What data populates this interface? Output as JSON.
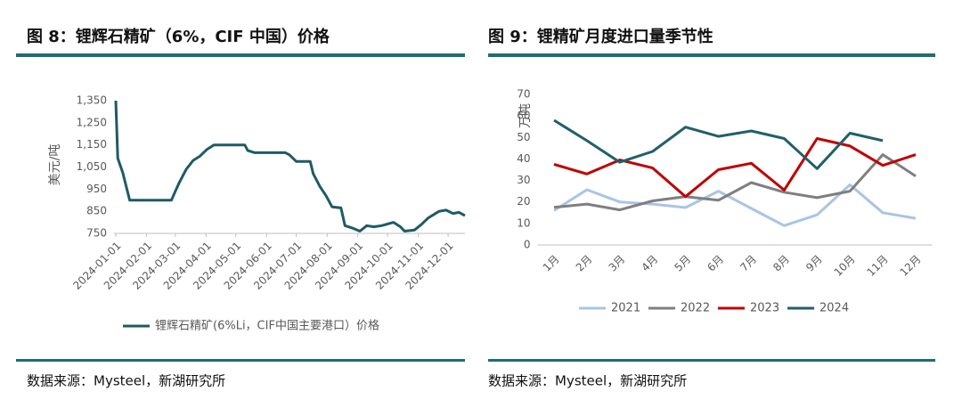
{
  "chart_data": [
    {
      "type": "line",
      "title": "图 8：锂辉石精矿（6%，CIF 中国）价格",
      "y_label": "美元/吨",
      "source": "数据来源：Mysteel，新湖研究所",
      "x": [
        "2024-01-01",
        "2024-01-03",
        "2024-01-08",
        "2024-01-15",
        "2024-02-26",
        "2024-03-01",
        "2024-03-05",
        "2024-03-12",
        "2024-03-19",
        "2024-03-26",
        "2024-04-02",
        "2024-04-09",
        "2024-05-10",
        "2024-05-13",
        "2024-05-20",
        "2024-06-20",
        "2024-06-24",
        "2024-07-01",
        "2024-07-15",
        "2024-07-18",
        "2024-07-25",
        "2024-07-31",
        "2024-08-06",
        "2024-08-15",
        "2024-08-19",
        "2024-08-26",
        "2024-09-03",
        "2024-09-10",
        "2024-09-17",
        "2024-09-25",
        "2024-10-07",
        "2024-10-14",
        "2024-10-18",
        "2024-10-28",
        "2024-11-04",
        "2024-11-11",
        "2024-11-22",
        "2024-11-29",
        "2024-12-06",
        "2024-12-12",
        "2024-12-18"
      ],
      "series": [
        {
          "name": "锂辉石精矿(6%Li，CIF中国主要港口）价格",
          "color": "#1f5a66",
          "values": [
            1350,
            1090,
            1025,
            900,
            900,
            940,
            980,
            1040,
            1080,
            1100,
            1130,
            1150,
            1150,
            1125,
            1115,
            1115,
            1105,
            1075,
            1075,
            1020,
            960,
            920,
            870,
            865,
            785,
            775,
            760,
            785,
            780,
            785,
            800,
            780,
            760,
            765,
            790,
            820,
            850,
            855,
            840,
            845,
            830
          ]
        }
      ],
      "xticks": [
        "2024-01-01",
        "2024-02-01",
        "2024-03-01",
        "2024-04-01",
        "2024-05-01",
        "2024-06-01",
        "2024-07-01",
        "2024-08-01",
        "2024-09-01",
        "2024-10-01",
        "2024-11-01",
        "2024-12-01"
      ],
      "ylim": [
        750,
        1350
      ],
      "yticks": [
        750,
        850,
        950,
        {
          "value": 1050,
          "label": "1,050"
        },
        {
          "value": 1150,
          "label": "1,150"
        },
        {
          "value": 1250,
          "label": "1,250"
        },
        {
          "value": 1350,
          "label": "1,350"
        }
      ],
      "legend": "bottom"
    },
    {
      "type": "line",
      "title": "图 9：锂精矿月度进口量季节性",
      "y_label": "万吨",
      "source": "数据来源：Mysteel，新湖研究所",
      "categories": [
        "1月",
        "2月",
        "3月",
        "4月",
        "5月",
        "6月",
        "7月",
        "8月",
        "9月",
        "10月",
        "11月",
        "12月"
      ],
      "series": [
        {
          "name": "2021",
          "color": "#a9c4e6",
          "values": [
            16,
            25.7,
            20,
            19,
            17.4,
            25,
            17,
            9,
            14,
            28,
            15,
            12.4
          ]
        },
        {
          "name": "2022",
          "color": "#7f7f7f",
          "values": [
            17.5,
            19,
            16.3,
            20.5,
            22.5,
            20.8,
            29,
            24.5,
            22,
            25,
            42,
            32
          ]
        },
        {
          "name": "2023",
          "color": "#c00000",
          "values": [
            37.5,
            33,
            39.5,
            35.8,
            22.5,
            35,
            38,
            25.5,
            49.5,
            46,
            37,
            42
          ]
        },
        {
          "name": "2024",
          "color": "#215f6b",
          "values": [
            58,
            48.5,
            38.5,
            43.5,
            54.8,
            50.5,
            53,
            49.5,
            35.5,
            52,
            48.5,
            null
          ]
        }
      ],
      "ylim": [
        0,
        70
      ],
      "yticks": [
        0,
        10,
        20,
        30,
        40,
        50,
        60,
        70
      ],
      "legend": "bottom"
    }
  ]
}
